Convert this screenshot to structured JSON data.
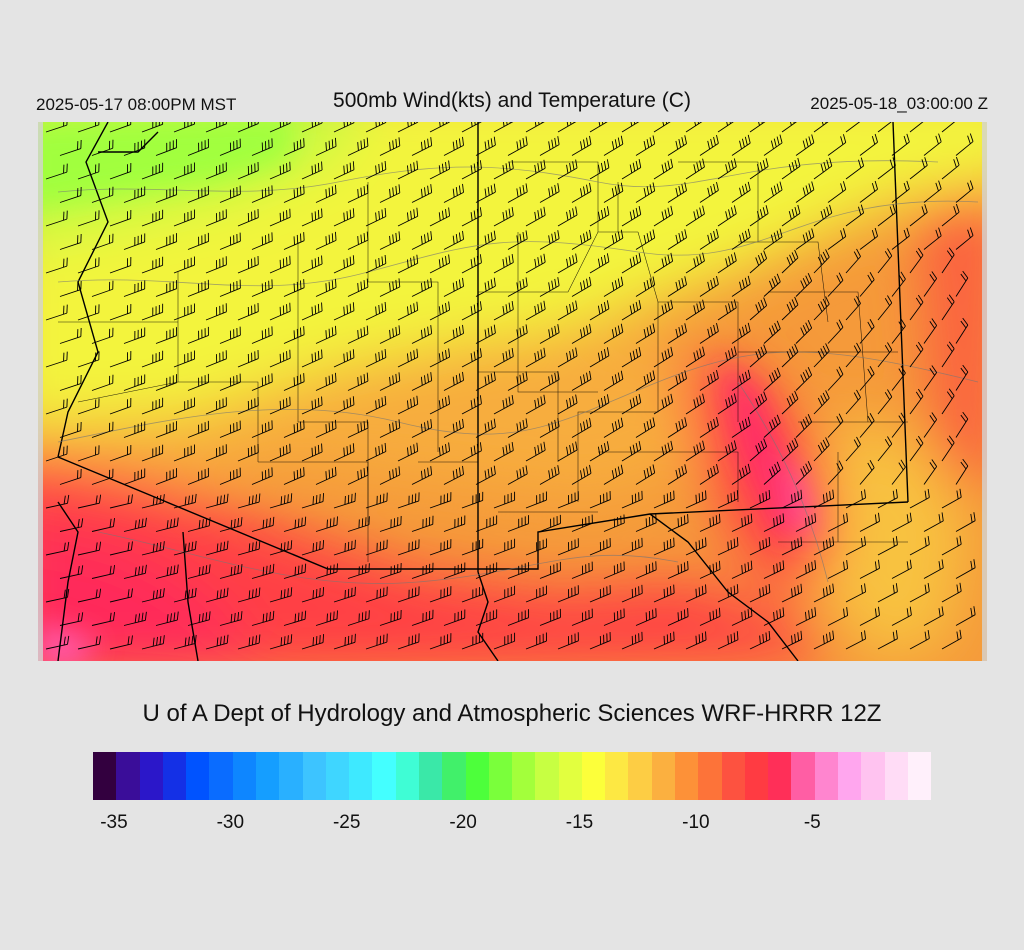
{
  "header": {
    "valid_local": "2025-05-17 08:00PM MST",
    "title": "500mb Wind(kts) and Temperature (C)",
    "valid_utc": "2025-05-18_03:00:00 Z"
  },
  "footer": {
    "credit": "U of A Dept of Hydrology and Atmospheric Sciences WRF-HRRR 12Z"
  },
  "colorbar": {
    "colors": [
      "#33003f",
      "#3a0d99",
      "#2b17c9",
      "#1430e6",
      "#0053ff",
      "#0a6cff",
      "#0e86ff",
      "#159eff",
      "#29b0ff",
      "#3dc4ff",
      "#3fd6ff",
      "#3ee9ff",
      "#44ffff",
      "#3ffdd5",
      "#3ae8a8",
      "#41f06a",
      "#4dff3b",
      "#7aff3b",
      "#a3ff3b",
      "#c7ff42",
      "#e2ff3f",
      "#fcff3a",
      "#fde843",
      "#fdcd44",
      "#fbb040",
      "#fd9138",
      "#fd7339",
      "#fd5240",
      "#ff3b42",
      "#ff2f58",
      "#ff5ea4",
      "#ff85cf",
      "#ffa6ee",
      "#ffc3f0",
      "#ffdcf6",
      "#fff0fb"
    ],
    "tick_labels": [
      "-35",
      "-30",
      "-25",
      "-20",
      "-15",
      "-10",
      "-5"
    ]
  },
  "map": {
    "field": "500mb temperature (C)",
    "wind_units": "kts",
    "palette": {
      "green": "#8aff3e",
      "yellow": "#f3f43c",
      "light_orange": "#f8c744",
      "orange": "#f59a3a",
      "red_orange": "#f66a3f",
      "red": "#ff3c46",
      "pink_red": "#ff2c5c",
      "pink": "#ff5cb3",
      "land_edge_gray": "#d3d3d3"
    }
  }
}
